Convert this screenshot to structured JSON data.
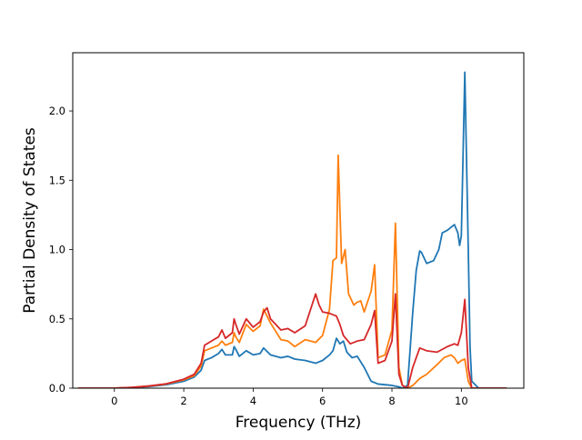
{
  "chart_data": {
    "type": "line",
    "title": "",
    "xlabel": "Frequency (THz)",
    "ylabel": "Partial Density of States",
    "xlim": [
      -1.2,
      11.8
    ],
    "ylim": [
      0.0,
      2.42
    ],
    "xticks": [
      0,
      2,
      4,
      6,
      8,
      10
    ],
    "yticks": [
      0.0,
      0.5,
      1.0,
      1.5,
      2.0
    ],
    "xtick_labels": [
      "0",
      "2",
      "4",
      "6",
      "8",
      "10"
    ],
    "ytick_labels": [
      "0.0",
      "0.5",
      "1.0",
      "1.5",
      "2.0"
    ],
    "grid": false,
    "legend": "none",
    "series": [
      {
        "color": "#1f77b4",
        "points": [
          [
            -1.05,
            0.0
          ],
          [
            0.0,
            0.0
          ],
          [
            0.5,
            0.005
          ],
          [
            1.0,
            0.012
          ],
          [
            1.5,
            0.025
          ],
          [
            2.0,
            0.05
          ],
          [
            2.3,
            0.08
          ],
          [
            2.5,
            0.13
          ],
          [
            2.6,
            0.2
          ],
          [
            2.8,
            0.22
          ],
          [
            3.0,
            0.25
          ],
          [
            3.1,
            0.28
          ],
          [
            3.2,
            0.24
          ],
          [
            3.4,
            0.24
          ],
          [
            3.45,
            0.3
          ],
          [
            3.5,
            0.28
          ],
          [
            3.6,
            0.23
          ],
          [
            3.8,
            0.27
          ],
          [
            4.0,
            0.24
          ],
          [
            4.2,
            0.25
          ],
          [
            4.3,
            0.29
          ],
          [
            4.5,
            0.24
          ],
          [
            4.8,
            0.22
          ],
          [
            5.0,
            0.23
          ],
          [
            5.2,
            0.21
          ],
          [
            5.5,
            0.2
          ],
          [
            5.8,
            0.18
          ],
          [
            6.0,
            0.2
          ],
          [
            6.2,
            0.24
          ],
          [
            6.3,
            0.27
          ],
          [
            6.4,
            0.36
          ],
          [
            6.5,
            0.32
          ],
          [
            6.6,
            0.34
          ],
          [
            6.7,
            0.26
          ],
          [
            6.85,
            0.22
          ],
          [
            7.0,
            0.23
          ],
          [
            7.2,
            0.15
          ],
          [
            7.4,
            0.05
          ],
          [
            7.6,
            0.03
          ],
          [
            8.0,
            0.02
          ],
          [
            8.2,
            0.01
          ],
          [
            8.3,
            0.0
          ],
          [
            8.45,
            0.02
          ],
          [
            8.6,
            0.55
          ],
          [
            8.7,
            0.85
          ],
          [
            8.8,
            0.99
          ],
          [
            8.85,
            0.98
          ],
          [
            9.0,
            0.9
          ],
          [
            9.2,
            0.92
          ],
          [
            9.35,
            1.0
          ],
          [
            9.45,
            1.12
          ],
          [
            9.6,
            1.14
          ],
          [
            9.8,
            1.18
          ],
          [
            9.9,
            1.12
          ],
          [
            9.95,
            1.03
          ],
          [
            10.0,
            1.1
          ],
          [
            10.1,
            2.28
          ],
          [
            10.2,
            1.0
          ],
          [
            10.25,
            0.3
          ],
          [
            10.3,
            0.05
          ],
          [
            10.5,
            0.0
          ],
          [
            11.3,
            0.0
          ]
        ]
      },
      {
        "color": "#ff7f0e",
        "points": [
          [
            -1.05,
            0.0
          ],
          [
            0.0,
            0.0
          ],
          [
            0.5,
            0.006
          ],
          [
            1.0,
            0.015
          ],
          [
            1.5,
            0.03
          ],
          [
            2.0,
            0.06
          ],
          [
            2.3,
            0.09
          ],
          [
            2.5,
            0.16
          ],
          [
            2.6,
            0.27
          ],
          [
            2.8,
            0.29
          ],
          [
            3.0,
            0.31
          ],
          [
            3.1,
            0.34
          ],
          [
            3.2,
            0.31
          ],
          [
            3.4,
            0.33
          ],
          [
            3.45,
            0.4
          ],
          [
            3.5,
            0.37
          ],
          [
            3.6,
            0.33
          ],
          [
            3.8,
            0.46
          ],
          [
            4.0,
            0.41
          ],
          [
            4.2,
            0.45
          ],
          [
            4.3,
            0.57
          ],
          [
            4.5,
            0.47
          ],
          [
            4.8,
            0.35
          ],
          [
            5.0,
            0.34
          ],
          [
            5.2,
            0.3
          ],
          [
            5.5,
            0.35
          ],
          [
            5.8,
            0.33
          ],
          [
            6.0,
            0.38
          ],
          [
            6.2,
            0.57
          ],
          [
            6.3,
            0.92
          ],
          [
            6.4,
            0.94
          ],
          [
            6.45,
            1.68
          ],
          [
            6.55,
            0.9
          ],
          [
            6.65,
            1.0
          ],
          [
            6.75,
            0.68
          ],
          [
            6.9,
            0.6
          ],
          [
            7.0,
            0.62
          ],
          [
            7.1,
            0.63
          ],
          [
            7.2,
            0.55
          ],
          [
            7.4,
            0.7
          ],
          [
            7.5,
            0.89
          ],
          [
            7.6,
            0.22
          ],
          [
            7.8,
            0.24
          ],
          [
            8.0,
            0.42
          ],
          [
            8.1,
            1.19
          ],
          [
            8.2,
            0.15
          ],
          [
            8.3,
            0.02
          ],
          [
            8.45,
            0.0
          ],
          [
            8.6,
            0.02
          ],
          [
            8.8,
            0.07
          ],
          [
            9.0,
            0.1
          ],
          [
            9.3,
            0.17
          ],
          [
            9.5,
            0.22
          ],
          [
            9.7,
            0.24
          ],
          [
            9.8,
            0.22
          ],
          [
            9.9,
            0.18
          ],
          [
            10.0,
            0.2
          ],
          [
            10.1,
            0.21
          ],
          [
            10.2,
            0.05
          ],
          [
            10.3,
            0.0
          ],
          [
            11.3,
            0.0
          ]
        ]
      },
      {
        "color": "#d62728",
        "points": [
          [
            -1.05,
            0.0
          ],
          [
            0.0,
            0.0
          ],
          [
            0.5,
            0.006
          ],
          [
            1.0,
            0.016
          ],
          [
            1.5,
            0.032
          ],
          [
            2.0,
            0.065
          ],
          [
            2.3,
            0.1
          ],
          [
            2.5,
            0.18
          ],
          [
            2.6,
            0.31
          ],
          [
            2.8,
            0.34
          ],
          [
            3.0,
            0.37
          ],
          [
            3.1,
            0.42
          ],
          [
            3.2,
            0.36
          ],
          [
            3.4,
            0.4
          ],
          [
            3.45,
            0.5
          ],
          [
            3.5,
            0.46
          ],
          [
            3.6,
            0.39
          ],
          [
            3.8,
            0.5
          ],
          [
            4.0,
            0.44
          ],
          [
            4.2,
            0.48
          ],
          [
            4.3,
            0.55
          ],
          [
            4.4,
            0.58
          ],
          [
            4.5,
            0.5
          ],
          [
            4.8,
            0.42
          ],
          [
            5.0,
            0.43
          ],
          [
            5.2,
            0.4
          ],
          [
            5.5,
            0.45
          ],
          [
            5.8,
            0.68
          ],
          [
            5.9,
            0.6
          ],
          [
            6.0,
            0.55
          ],
          [
            6.2,
            0.54
          ],
          [
            6.4,
            0.52
          ],
          [
            6.5,
            0.46
          ],
          [
            6.6,
            0.38
          ],
          [
            6.8,
            0.32
          ],
          [
            7.0,
            0.34
          ],
          [
            7.2,
            0.35
          ],
          [
            7.4,
            0.46
          ],
          [
            7.5,
            0.56
          ],
          [
            7.6,
            0.18
          ],
          [
            7.8,
            0.2
          ],
          [
            8.0,
            0.34
          ],
          [
            8.1,
            0.68
          ],
          [
            8.2,
            0.1
          ],
          [
            8.3,
            0.02
          ],
          [
            8.45,
            0.0
          ],
          [
            8.6,
            0.15
          ],
          [
            8.8,
            0.29
          ],
          [
            9.0,
            0.27
          ],
          [
            9.3,
            0.26
          ],
          [
            9.6,
            0.3
          ],
          [
            9.8,
            0.32
          ],
          [
            9.9,
            0.31
          ],
          [
            10.0,
            0.4
          ],
          [
            10.1,
            0.64
          ],
          [
            10.2,
            0.15
          ],
          [
            10.3,
            0.0
          ],
          [
            11.3,
            0.0
          ]
        ]
      }
    ]
  }
}
